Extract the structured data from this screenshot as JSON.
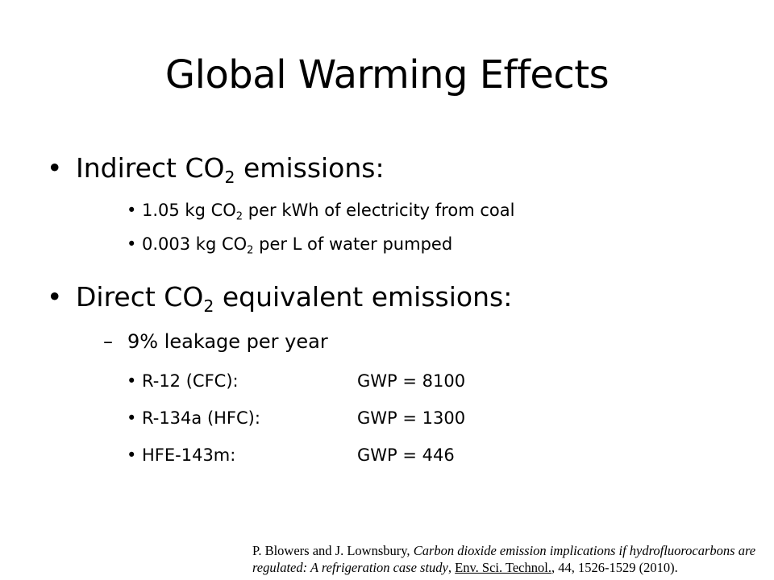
{
  "slide": {
    "title": "Global Warming Effects",
    "indirect": {
      "heading_pre": "Indirect CO",
      "heading_sub": "2",
      "heading_post": " emissions:",
      "items": [
        {
          "pre": "1.05 kg CO",
          "sub": "2",
          "post": " per kWh of electricity from coal"
        },
        {
          "pre": "0.003 kg CO",
          "sub": "2",
          "post": " per L of water pumped"
        }
      ]
    },
    "direct": {
      "heading_pre": "Direct CO",
      "heading_sub": "2",
      "heading_post": " equivalent emissions:",
      "leakage": "9% leakage per year",
      "dash": "–",
      "refrigerants": [
        {
          "name": "R-12 (CFC):",
          "gwp": "GWP = 8100"
        },
        {
          "name": "R-134a (HFC):",
          "gwp": "GWP = 1300"
        },
        {
          "name": "HFE-143m:",
          "gwp": "GWP = 446"
        }
      ]
    },
    "bullet_glyph": "•",
    "citation": {
      "authors": "P. Blowers and J. Lownsbury, ",
      "article_title": "Carbon dioxide emission implications if hydrofluorocarbons are regulated: A refrigeration case study",
      "sep": ", ",
      "journal": "Env. Sci. Technol.",
      "details": ", 44, 1526-1529 (2010)."
    }
  }
}
